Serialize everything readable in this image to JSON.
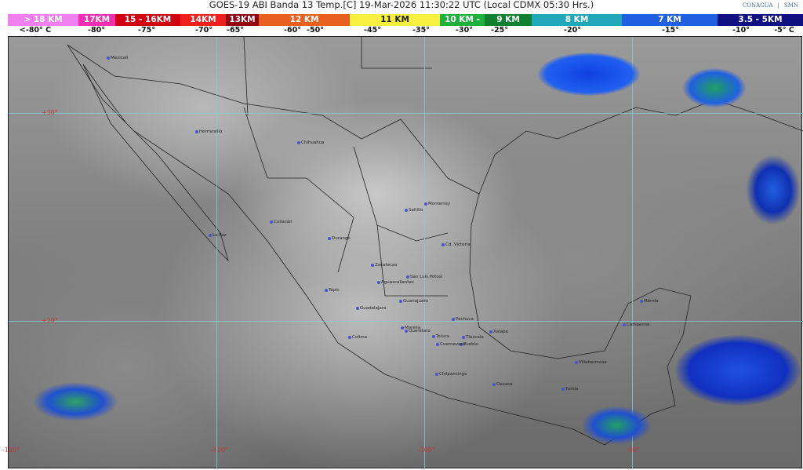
{
  "title": "GOES-19 ABI Banda 13 Temp.[C] 19-Mar-2026 11:30:22 UTC (Local CDMX  05:30 Hrs.)",
  "logos": {
    "conagua": "CONAGUA",
    "smn": "SMN"
  },
  "legend": [
    {
      "label": "> 18 KM",
      "color": "#f080f0"
    },
    {
      "label": "17KM",
      "color": "#f030b0"
    },
    {
      "label": "15 - 16KM",
      "color": "#d00010"
    },
    {
      "label": "14KM",
      "color": "#f02020"
    },
    {
      "label": "13KM",
      "color": "#900010"
    },
    {
      "label": "12 KM",
      "color": "#e86020"
    },
    {
      "label": "11 KM",
      "color": "#f8f040"
    },
    {
      "label": "10 KM -",
      "color": "#20b040"
    },
    {
      "label": "9 KM",
      "color": "#108030"
    },
    {
      "label": "8 KM",
      "color": "#20a8b8"
    },
    {
      "label": "7 KM",
      "color": "#2060e0"
    },
    {
      "label": "3.5 - 5KM",
      "color": "#101080"
    }
  ],
  "temps": [
    "<-80° C",
    "-80°",
    "-75°",
    "-70°",
    "-65°",
    "-60°",
    "-50°",
    "-45°",
    "-35°",
    "-30°",
    "-25°",
    "-20°",
    "-15°",
    "-10°",
    "-5°  C"
  ],
  "lat_labels": [
    "+30°",
    "+20°"
  ],
  "lon_labels": [
    "-120°",
    "-110°",
    "-100°",
    "-90°"
  ],
  "cities": [
    "Mexicali",
    "Hermosillo",
    "Chihuahua",
    "Culiacán",
    "La Paz",
    "Durango",
    "Monterrey",
    "Saltillo",
    "Cd. Victoria",
    "Zacatecas",
    "San Luis Potosí",
    "Aguascalientes",
    "Tepic",
    "Guadalajara",
    "Guanajuato",
    "Querétaro",
    "Pachuca",
    "Colima",
    "Morelia",
    "Toluca",
    "Tlaxcala",
    "Puebla",
    "Cuernavaca",
    "Xalapa",
    "Chilpancingo",
    "Oaxaca",
    "Villahermosa",
    "Tuxtla",
    "Mérida",
    "Campeche"
  ]
}
